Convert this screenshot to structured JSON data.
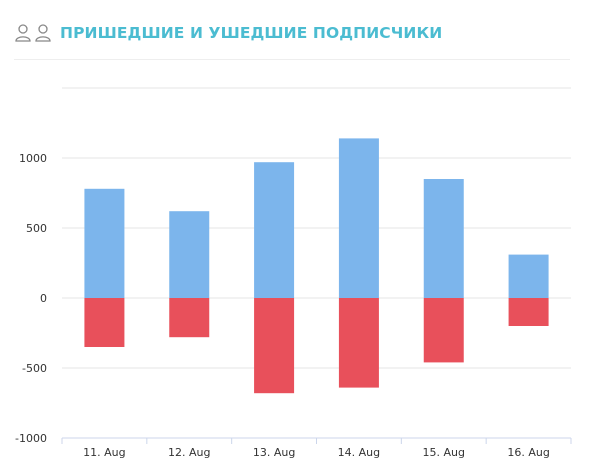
{
  "header": {
    "title": "ПРИШЕДШИЕ И УШЕДШИЕ ПОДПИСЧИКИ",
    "icons": [
      "user-outline-icon",
      "user-outline-icon"
    ]
  },
  "chart_data": {
    "type": "bar",
    "stacked": true,
    "categories": [
      "11. Aug",
      "12. Aug",
      "13. Aug",
      "14. Aug",
      "15. Aug",
      "16. Aug"
    ],
    "series": [
      {
        "values": [
          780,
          620,
          970,
          1140,
          850,
          310
        ],
        "color": "#7cb5ec"
      },
      {
        "values": [
          -350,
          -280,
          -680,
          -640,
          -460,
          -200
        ],
        "color": "#e8505b"
      }
    ],
    "y_ticks": [
      1000,
      500,
      0,
      -500,
      -1000
    ],
    "ylim": [
      -1000,
      1500
    ],
    "grid": true,
    "legend": "none"
  }
}
